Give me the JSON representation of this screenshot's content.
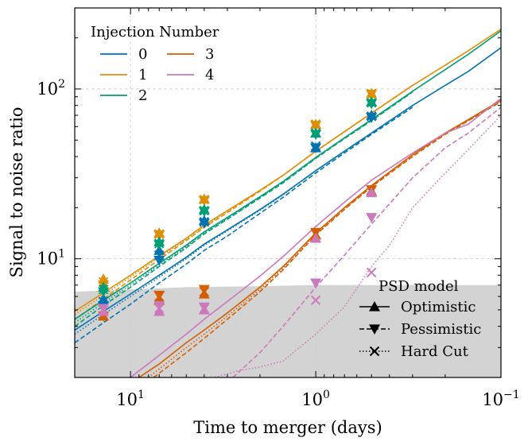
{
  "chart_data": {
    "type": "line",
    "xlabel": "Time to merger (days)",
    "ylabel": "Signal to noise ratio",
    "x_scale": "log",
    "y_scale": "log",
    "x_reversed": true,
    "xlim": [
      20,
      0.1
    ],
    "ylim": [
      2,
      300
    ],
    "x_ticks": [
      {
        "value": 10,
        "base": "10",
        "exp": "1"
      },
      {
        "value": 1,
        "base": "10",
        "exp": "0"
      },
      {
        "value": 0.1,
        "base": "10",
        "exp": "−1"
      }
    ],
    "y_ticks": [
      {
        "value": 10,
        "base": "10",
        "exp": "1"
      },
      {
        "value": 100,
        "base": "10",
        "exp": "2"
      }
    ],
    "grid": true,
    "shaded_region_upper": {
      "x": [
        20,
        10,
        5,
        2,
        1,
        0.5,
        0.2,
        0.1
      ],
      "y": [
        6.4,
        6.6,
        6.8,
        6.9,
        7.0,
        7.0,
        7.0,
        7.0
      ],
      "color": "#d3d3d3"
    },
    "legend_injection": {
      "title": "Injection Number",
      "position": "top-left",
      "entries": [
        {
          "label": "0",
          "color": "#0173b2"
        },
        {
          "label": "1",
          "color": "#de8f05"
        },
        {
          "label": "2",
          "color": "#029e73"
        },
        {
          "label": "3",
          "color": "#d55e00"
        },
        {
          "label": "4",
          "color": "#cc78bc"
        }
      ]
    },
    "legend_psd": {
      "title": "PSD model",
      "position": "bottom-right",
      "entries": [
        {
          "label": "Optimistic",
          "marker": "triangle-up",
          "linestyle": "solid"
        },
        {
          "label": "Pessimistic",
          "marker": "triangle-down",
          "linestyle": "dashed"
        },
        {
          "label": "Hard Cut",
          "marker": "x",
          "linestyle": "dotted"
        }
      ]
    },
    "marker_x": [
      14,
      7,
      4,
      1,
      0.5
    ],
    "series": [
      {
        "injection": "0",
        "color": "#0173b2",
        "curves": [
          {
            "psd": "Optimistic",
            "x": [
              20,
              14,
              10,
              7,
              5,
              4,
              3,
              2,
              1.5,
              1,
              0.7,
              0.5,
              0.3,
              0.2,
              0.15,
              0.1
            ],
            "y": [
              3.8,
              4.9,
              6.2,
              8,
              10.2,
              12.2,
              14.8,
              19.5,
              24,
              33,
              43,
              55,
              80,
              105,
              127,
              175
            ]
          },
          {
            "psd": "Pessimistic",
            "x": [
              20,
              14,
              10,
              7,
              5,
              4,
              3,
              2,
              1.5,
              1,
              0.7,
              0.5,
              0.3
            ],
            "y": [
              3.2,
              4.2,
              5.4,
              7.2,
              9.3,
              11.2,
              13.6,
              18.5,
              23,
              32,
              42,
              54,
              78
            ]
          },
          {
            "psd": "Hard Cut",
            "x": [
              20,
              14,
              10,
              7,
              5,
              4,
              3,
              2,
              1.5,
              1,
              0.7,
              0.5,
              0.3
            ],
            "y": [
              3.6,
              4.7,
              6,
              7.8,
              10,
              12,
              14.6,
              19.3,
              23.8,
              33,
              43,
              55,
              80
            ]
          }
        ],
        "markers": [
          {
            "psd": "Optimistic",
            "y": [
              5.8,
              11.2,
              16.8,
              45,
              70
            ]
          },
          {
            "psd": "Pessimistic",
            "y": [
              5.3,
              9.8,
              16.2,
              45,
              68
            ]
          },
          {
            "psd": "Hard Cut",
            "y": [
              5.6,
              10.5,
              16.5,
              46,
              69
            ]
          }
        ]
      },
      {
        "injection": "1",
        "color": "#de8f05",
        "curves": [
          {
            "psd": "Optimistic",
            "x": [
              20,
              14,
              10,
              7,
              5,
              4,
              3,
              2,
              1.5,
              1,
              0.7,
              0.5,
              0.3,
              0.2,
              0.15,
              0.1
            ],
            "y": [
              4.9,
              6.3,
              8,
              10.4,
              13.2,
              15.8,
              19.2,
              25.3,
              31,
              43,
              56,
              72,
              105,
              138,
              168,
              225
            ]
          },
          {
            "psd": "Pessimistic",
            "x": [
              20,
              14,
              10,
              7,
              5,
              4,
              3,
              2,
              1.5,
              1,
              0.7,
              0.5,
              0.3
            ],
            "y": [
              4.4,
              5.8,
              7.5,
              9.9,
              12.8,
              15.3,
              18.7,
              25,
              31,
              43,
              56,
              72,
              105
            ]
          },
          {
            "psd": "Hard Cut",
            "x": [
              20,
              14,
              10,
              7,
              5,
              4,
              3,
              2,
              1.5,
              1,
              0.7,
              0.5,
              0.3
            ],
            "y": [
              4.7,
              6.1,
              7.8,
              10.2,
              13,
              15.6,
              19,
              25.2,
              31,
              43,
              56,
              72,
              105
            ]
          }
        ],
        "markers": [
          {
            "psd": "Optimistic",
            "y": [
              7.6,
              14.2,
              22.5,
              62,
              94
            ]
          },
          {
            "psd": "Pessimistic",
            "y": [
              7,
              13.8,
              22,
              61,
              93
            ]
          },
          {
            "psd": "Hard Cut",
            "y": [
              7.3,
              14,
              22.3,
              62,
              94
            ]
          }
        ]
      },
      {
        "injection": "2",
        "color": "#029e73",
        "curves": [
          {
            "psd": "Optimistic",
            "x": [
              20,
              14,
              10,
              7,
              5,
              4,
              3,
              2,
              1.5,
              1,
              0.7,
              0.5,
              0.3,
              0.2,
              0.15,
              0.1
            ],
            "y": [
              4.4,
              5.7,
              7.2,
              9.4,
              12,
              14.4,
              17.5,
              23.2,
              28.5,
              39.5,
              51.5,
              66,
              97,
              130,
              160,
              220
            ]
          },
          {
            "psd": "Pessimistic",
            "x": [
              20,
              14,
              10,
              7,
              5,
              4,
              3,
              2,
              1.5,
              1,
              0.7,
              0.5,
              0.3
            ],
            "y": [
              4,
              5.3,
              6.8,
              9,
              11.6,
              14,
              17.1,
              22.8,
              28,
              39,
              51,
              65,
              96
            ]
          },
          {
            "psd": "Hard Cut",
            "x": [
              20,
              14,
              10,
              7,
              5,
              4,
              3,
              2,
              1.5,
              1,
              0.7,
              0.5,
              0.3
            ],
            "y": [
              4.2,
              5.5,
              7,
              9.2,
              11.8,
              14.2,
              17.3,
              23,
              28.3,
              39.3,
              51.3,
              65.5,
              96.5
            ]
          }
        ],
        "markers": [
          {
            "psd": "Optimistic",
            "y": [
              6.8,
              12.6,
              19.5,
              55,
              84
            ]
          },
          {
            "psd": "Pessimistic",
            "y": [
              6.4,
              12.1,
              19,
              54,
              82
            ]
          },
          {
            "psd": "Hard Cut",
            "y": [
              6.6,
              12.3,
              19.2,
              55,
              83
            ]
          }
        ]
      },
      {
        "injection": "3",
        "color": "#d55e00",
        "curves": [
          {
            "psd": "Optimistic",
            "x": [
              9,
              7,
              5,
              4,
              3,
              2,
              1.5,
              1,
              0.7,
              0.5,
              0.3,
              0.2,
              0.15,
              0.1
            ],
            "y": [
              2,
              2.4,
              3.2,
              3.8,
              4.8,
              6.8,
              9,
              14.2,
              20,
              27,
              41,
              55,
              66,
              86
            ]
          },
          {
            "psd": "Pessimistic",
            "x": [
              7.5,
              5,
              4,
              3,
              2,
              1.5,
              1,
              0.7,
              0.5,
              0.3,
              0.2,
              0.15,
              0.1
            ],
            "y": [
              2,
              2.8,
              3.4,
              4.4,
              6.4,
              8.6,
              13.8,
              19.5,
              26.5,
              40,
              54,
              65,
              84
            ]
          },
          {
            "psd": "Hard Cut",
            "x": [
              8,
              5,
              4,
              3,
              2,
              1.5,
              1,
              0.7,
              0.5,
              0.3,
              0.2,
              0.15,
              0.1
            ],
            "y": [
              2,
              3,
              3.6,
              4.6,
              6.6,
              8.8,
              14,
              19.7,
              26.8,
              40.5,
              54.5,
              65.5,
              85
            ]
          }
        ],
        "markers": [
          {
            "psd": "Optimistic",
            "y": [
              4.6,
              5.7,
              6.2,
              13.8,
              25
            ]
          },
          {
            "psd": "Pessimistic",
            "y": [
              4.6,
              6.1,
              6.6,
              14.3,
              25.5
            ]
          },
          {
            "psd": "Hard Cut",
            "y": [
              4.6,
              6,
              6.4,
              14,
              25.2
            ]
          }
        ]
      },
      {
        "injection": "4",
        "color": "#cc78bc",
        "curves": [
          {
            "psd": "Optimistic",
            "x": [
              10,
              7,
              5,
              4,
              3,
              2,
              1.5,
              1,
              0.7,
              0.5,
              0.3,
              0.2,
              0.15,
              0.1
            ],
            "y": [
              2,
              2.7,
              3.6,
              4.4,
              5.6,
              7.9,
              10.3,
              15.5,
              21.5,
              29,
              42,
              55,
              62,
              88
            ]
          },
          {
            "psd": "Pessimistic",
            "x": [
              2.8,
              2,
              1.5,
              1,
              0.7,
              0.5,
              0.3,
              0.2,
              0.15,
              0.1
            ],
            "y": [
              2,
              2.8,
              4,
              6.8,
              10.5,
              16,
              30,
              45,
              55,
              78
            ]
          },
          {
            "psd": "Hard Cut",
            "x": [
              3.5,
              2.6,
              2,
              1.5,
              1,
              0.7,
              0.5,
              0.4,
              0.3,
              0.2,
              0.15,
              0.1
            ],
            "y": [
              2,
              2.2,
              2.3,
              2.5,
              3.6,
              5.2,
              9,
              12,
              20,
              32,
              44,
              70
            ]
          }
        ],
        "markers": [
          {
            "psd": "Optimistic",
            "y": [
              4.9,
              4.9,
              5,
              13.2,
              24.5
            ]
          },
          {
            "psd": "Pessimistic",
            "y": [
              5.1,
              5.3,
              5.2,
              7.2,
              17.5
            ]
          },
          {
            "psd": "Hard Cut",
            "y": [
              5,
              5.1,
              5.1,
              5.7,
              8.3
            ]
          }
        ]
      }
    ]
  }
}
